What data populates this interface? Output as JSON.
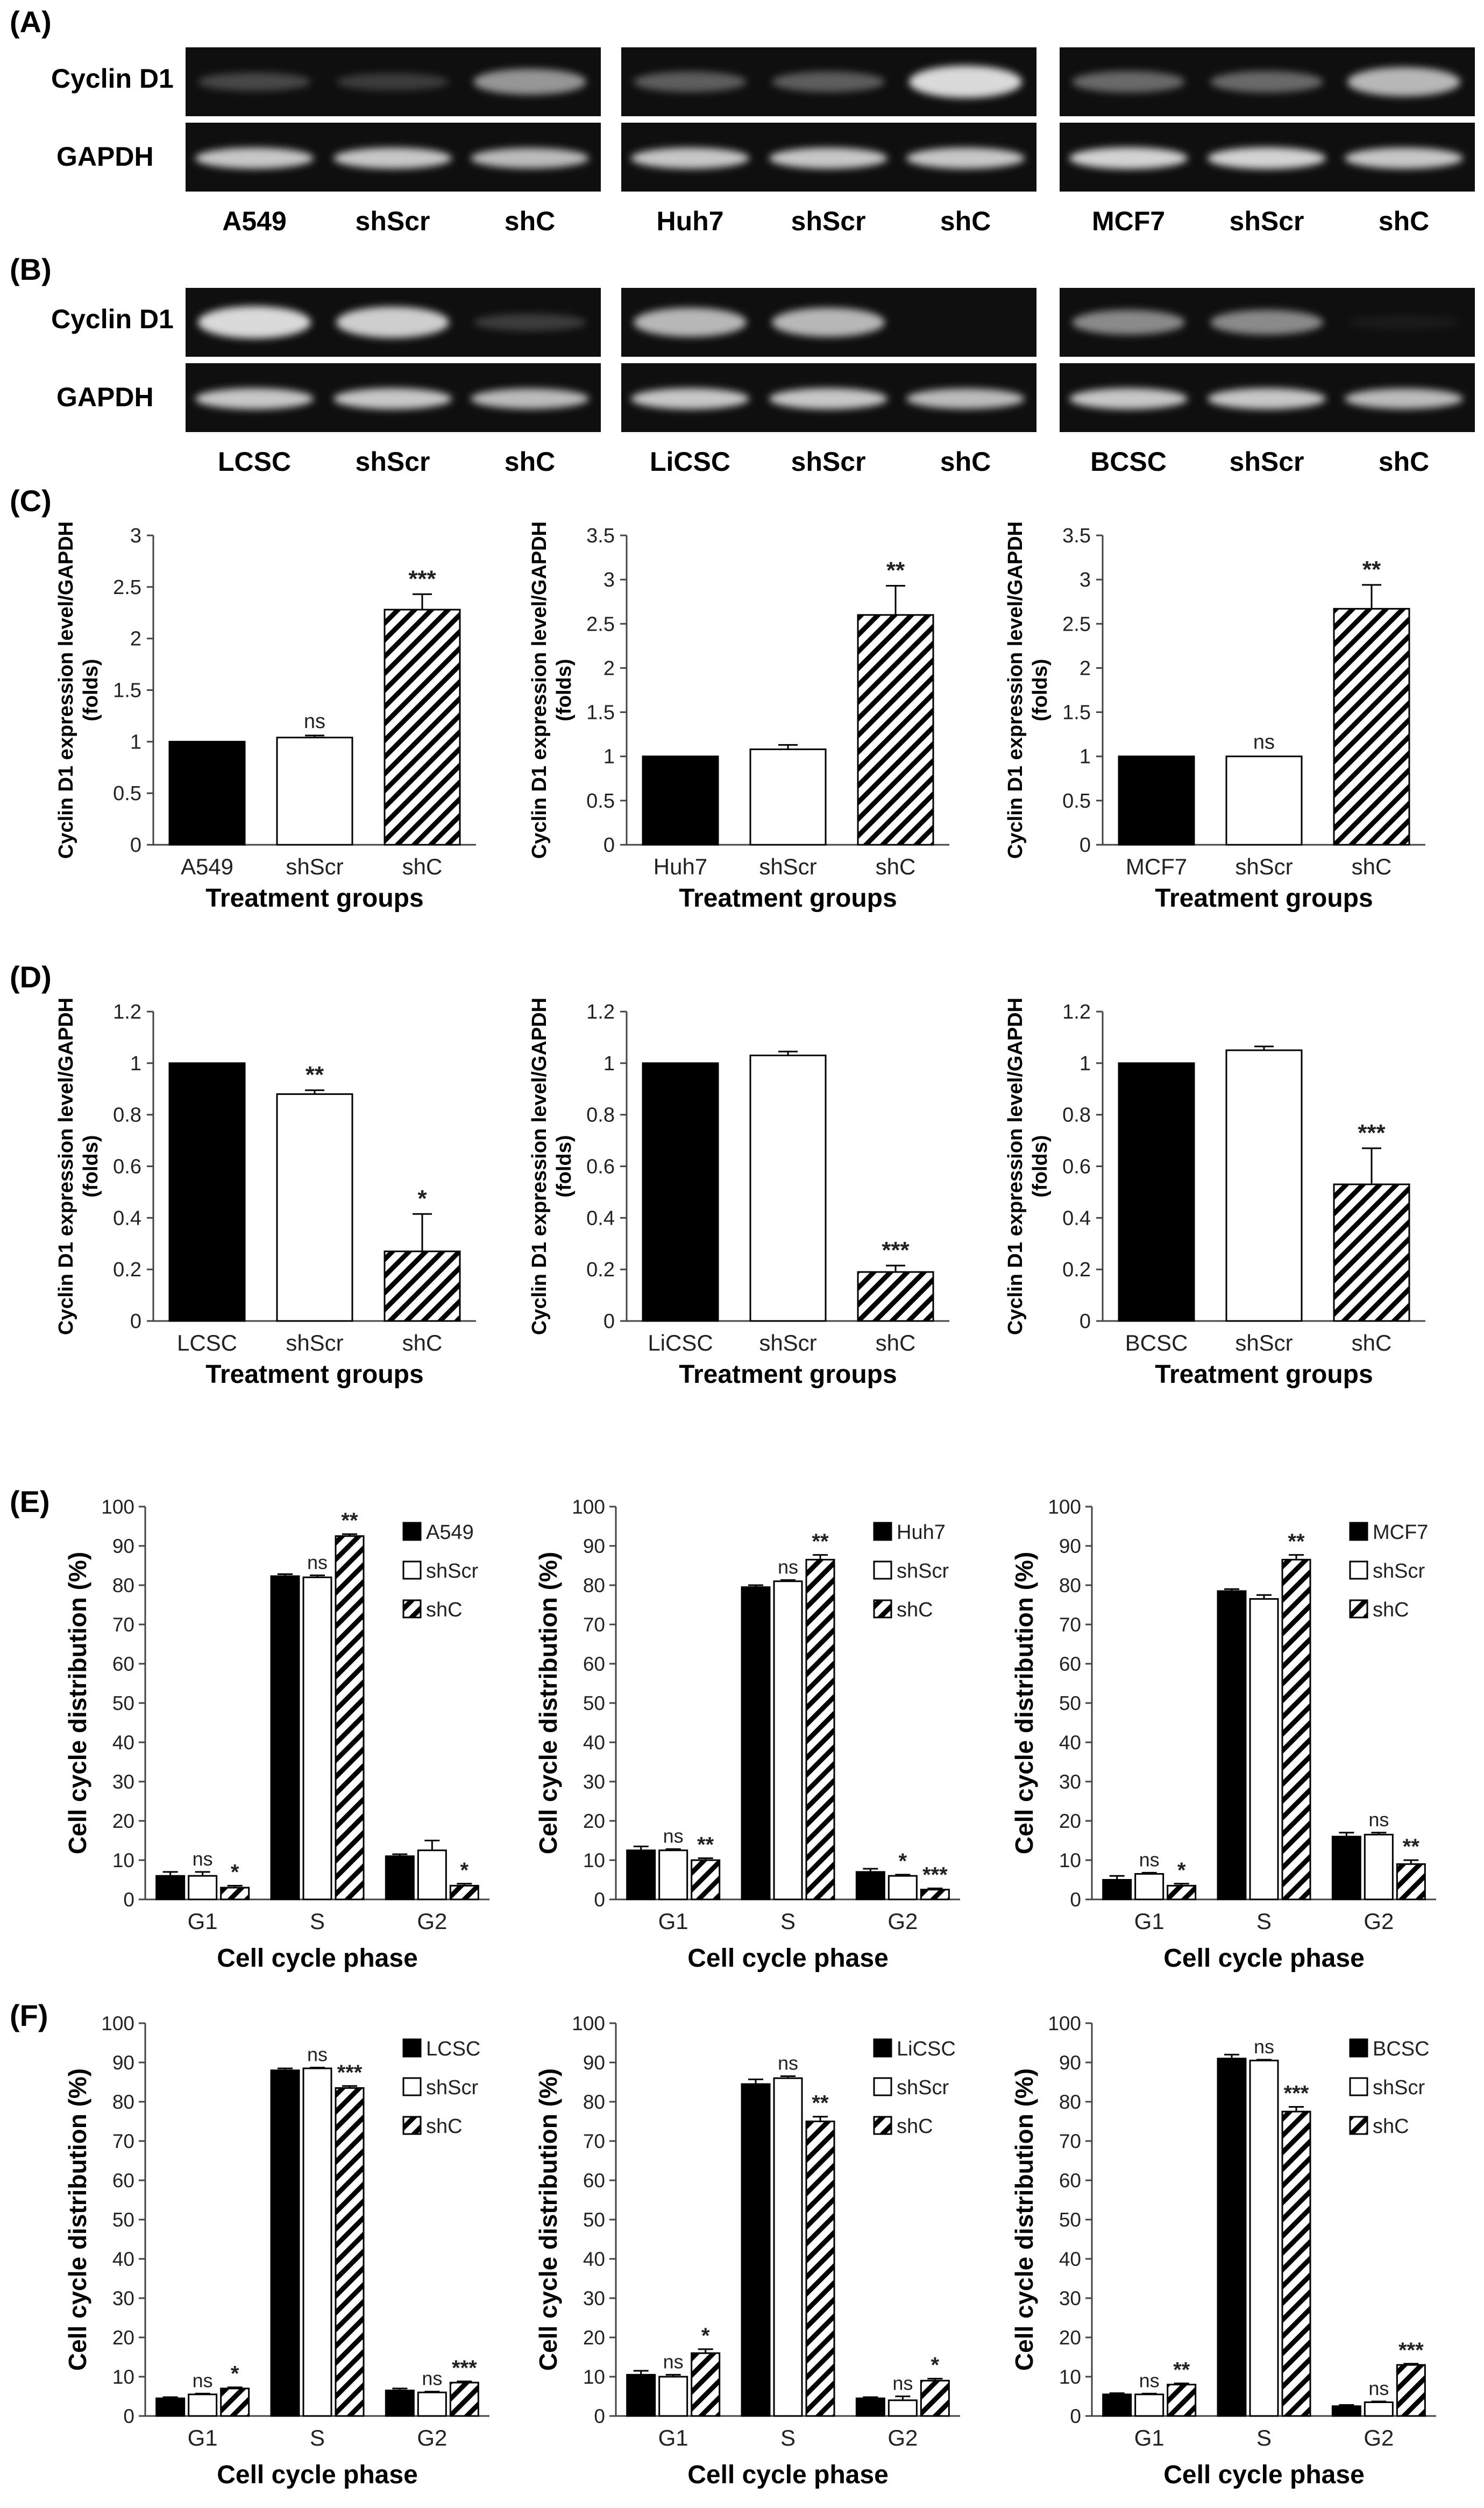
{
  "panel_labels": [
    "(A)",
    "(B)",
    "(C)",
    "(D)",
    "(E)",
    "(F)"
  ],
  "colors": {
    "control": "#000000",
    "shScr": "#ffffff",
    "shC": "hatch",
    "gel_bg": "#0d0d0d",
    "band": "#e8e8e8"
  },
  "blots": {
    "A": {
      "row_labels": [
        "Cyclin D1",
        "GAPDH"
      ],
      "groups": [
        {
          "lanes": [
            "A549",
            "shScr",
            "shC"
          ],
          "cyclin": [
            0.25,
            0.2,
            0.6
          ],
          "gapdh": [
            0.8,
            0.8,
            0.75
          ]
        },
        {
          "lanes": [
            "Huh7",
            "shScr",
            "shC"
          ],
          "cyclin": [
            0.35,
            0.35,
            0.9
          ],
          "gapdh": [
            0.8,
            0.8,
            0.8
          ]
        },
        {
          "lanes": [
            "MCF7",
            "shScr",
            "shC"
          ],
          "cyclin": [
            0.4,
            0.4,
            0.75
          ],
          "gapdh": [
            0.85,
            0.85,
            0.8
          ]
        }
      ]
    },
    "B": {
      "row_labels": [
        "Cyclin D1",
        "GAPDH"
      ],
      "groups": [
        {
          "lanes": [
            "LCSC",
            "shScr",
            "shC"
          ],
          "cyclin": [
            0.9,
            0.85,
            0.2
          ],
          "gapdh": [
            0.8,
            0.8,
            0.75
          ]
        },
        {
          "lanes": [
            "LiCSC",
            "shScr",
            "shC"
          ],
          "cyclin": [
            0.75,
            0.75,
            0.0
          ],
          "gapdh": [
            0.8,
            0.8,
            0.75
          ]
        },
        {
          "lanes": [
            "BCSC",
            "shScr",
            "shC"
          ],
          "cyclin": [
            0.55,
            0.55,
            0.05
          ],
          "gapdh": [
            0.8,
            0.8,
            0.75
          ]
        }
      ]
    }
  },
  "chart_data": [
    {
      "id": "C1",
      "panel": "C",
      "type": "bar",
      "categories": [
        "A549",
        "shScr",
        "shC"
      ],
      "values": [
        1.0,
        1.04,
        2.28
      ],
      "errors": [
        0,
        0.02,
        0.15
      ],
      "annotations": [
        "",
        "ns",
        "***"
      ],
      "ylim": [
        0,
        3
      ],
      "yticks": [
        "0",
        "0.5",
        "1",
        "1.5",
        "2",
        "2.5",
        "3"
      ],
      "ylabel_lines": [
        "Cyclin D1 expression level/GAPDH",
        "(folds)"
      ],
      "xlabel": "Treatment groups"
    },
    {
      "id": "C2",
      "panel": "C",
      "type": "bar",
      "categories": [
        "Huh7",
        "shScr",
        "shC"
      ],
      "values": [
        1.0,
        1.08,
        2.6
      ],
      "errors": [
        0,
        0.05,
        0.33
      ],
      "annotations": [
        "",
        "",
        "**"
      ],
      "ylim": [
        0,
        3.5
      ],
      "yticks": [
        "0",
        "0.5",
        "1",
        "1.5",
        "2",
        "2.5",
        "3",
        "3.5"
      ],
      "ylabel_lines": [
        "Cyclin D1 expression level/GAPDH",
        "(folds)"
      ],
      "xlabel": "Treatment groups"
    },
    {
      "id": "C3",
      "panel": "C",
      "type": "bar",
      "categories": [
        "MCF7",
        "shScr",
        "shC"
      ],
      "values": [
        1.0,
        1.0,
        2.67
      ],
      "errors": [
        0,
        0,
        0.27
      ],
      "annotations": [
        "",
        "ns",
        "**"
      ],
      "ylim": [
        0,
        3.5
      ],
      "yticks": [
        "0",
        "0.5",
        "1",
        "1.5",
        "2",
        "2.5",
        "3",
        "3.5"
      ],
      "ylabel_lines": [
        "Cyclin D1 expression level/GAPDH",
        "(folds)"
      ],
      "xlabel": "Treatment groups"
    },
    {
      "id": "D1",
      "panel": "D",
      "type": "bar",
      "categories": [
        "LCSC",
        "shScr",
        "shC"
      ],
      "values": [
        1.0,
        0.88,
        0.27
      ],
      "errors": [
        0,
        0.015,
        0.145
      ],
      "annotations": [
        "",
        "**",
        "*"
      ],
      "ylim": [
        0,
        1.2
      ],
      "yticks": [
        "0",
        "0.2",
        "0.4",
        "0.6",
        "0.8",
        "1",
        "1.2"
      ],
      "ylabel_lines": [
        "Cyclin D1 expression level/GAPDH",
        "(folds)"
      ],
      "xlabel": "Treatment groups"
    },
    {
      "id": "D2",
      "panel": "D",
      "type": "bar",
      "categories": [
        "LiCSC",
        "shScr",
        "shC"
      ],
      "values": [
        1.0,
        1.03,
        0.19
      ],
      "errors": [
        0,
        0.015,
        0.025
      ],
      "annotations": [
        "",
        "",
        "***"
      ],
      "ylim": [
        0,
        1.2
      ],
      "yticks": [
        "0",
        "0.2",
        "0.4",
        "0.6",
        "0.8",
        "1",
        "1.2"
      ],
      "ylabel_lines": [
        "Cyclin D1 expression level/GAPDH",
        "(folds)"
      ],
      "xlabel": "Treatment groups"
    },
    {
      "id": "D3",
      "panel": "D",
      "type": "bar",
      "categories": [
        "BCSC",
        "shScr",
        "shC"
      ],
      "values": [
        1.0,
        1.05,
        0.53
      ],
      "errors": [
        0,
        0.015,
        0.14
      ],
      "annotations": [
        "",
        "",
        "***"
      ],
      "ylim": [
        0,
        1.2
      ],
      "yticks": [
        "0",
        "0.2",
        "0.4",
        "0.6",
        "0.8",
        "1",
        "1.2"
      ],
      "ylabel_lines": [
        "Cyclin D1 expression level/GAPDH",
        "(folds)"
      ],
      "xlabel": "Treatment groups"
    },
    {
      "id": "E1",
      "panel": "E",
      "type": "grouped-bar",
      "categories": [
        "G1",
        "S",
        "G2"
      ],
      "ylim": [
        0,
        100
      ],
      "yticks": [
        "0",
        "10",
        "20",
        "30",
        "40",
        "50",
        "60",
        "70",
        "80",
        "90",
        "100"
      ],
      "ylabel": "Cell cycle distribution (%)",
      "xlabel": "Cell cycle phase",
      "legend_position": "top-right",
      "series": [
        {
          "name": "A549",
          "style": "solid",
          "values": [
            6.0,
            82.3,
            11.0
          ],
          "errors": [
            1.0,
            0.5,
            0.5
          ],
          "annotations": [
            "",
            "",
            ""
          ]
        },
        {
          "name": "shScr",
          "style": "open",
          "values": [
            6.0,
            82.0,
            12.5
          ],
          "errors": [
            1.0,
            0.5,
            2.5
          ],
          "annotations": [
            "ns",
            "ns",
            ""
          ]
        },
        {
          "name": "shC",
          "style": "hatch",
          "values": [
            3.0,
            92.5,
            3.5
          ],
          "errors": [
            0.5,
            0.5,
            0.5
          ],
          "annotations": [
            "*",
            "**",
            "*"
          ]
        }
      ]
    },
    {
      "id": "E2",
      "panel": "E",
      "type": "grouped-bar",
      "categories": [
        "G1",
        "S",
        "G2"
      ],
      "ylim": [
        0,
        100
      ],
      "yticks": [
        "0",
        "10",
        "20",
        "30",
        "40",
        "50",
        "60",
        "70",
        "80",
        "90",
        "100"
      ],
      "ylabel": "Cell cycle distribution (%)",
      "xlabel": "Cell cycle phase",
      "legend_position": "top-right",
      "series": [
        {
          "name": "Huh7",
          "style": "solid",
          "values": [
            12.5,
            79.5,
            7.0
          ],
          "errors": [
            1.0,
            0.5,
            0.8
          ],
          "annotations": [
            "",
            "",
            ""
          ]
        },
        {
          "name": "shScr",
          "style": "open",
          "values": [
            12.5,
            81.0,
            6.0
          ],
          "errors": [
            0.3,
            0.3,
            0.3
          ],
          "annotations": [
            "ns",
            "ns",
            "*"
          ]
        },
        {
          "name": "shC",
          "style": "hatch",
          "values": [
            10.0,
            86.5,
            2.5
          ],
          "errors": [
            0.5,
            1.2,
            0.3
          ],
          "annotations": [
            "**",
            "**",
            "***"
          ]
        }
      ]
    },
    {
      "id": "E3",
      "panel": "E",
      "type": "grouped-bar",
      "categories": [
        "G1",
        "S",
        "G2"
      ],
      "ylim": [
        0,
        100
      ],
      "yticks": [
        "0",
        "10",
        "20",
        "30",
        "40",
        "50",
        "60",
        "70",
        "80",
        "90",
        "100"
      ],
      "ylabel": "Cell cycle distribution (%)",
      "xlabel": "Cell cycle phase",
      "legend_position": "top-right",
      "series": [
        {
          "name": "MCF7",
          "style": "solid",
          "values": [
            5.0,
            78.5,
            16.0
          ],
          "errors": [
            1.0,
            0.5,
            1.0
          ],
          "annotations": [
            "",
            "",
            ""
          ]
        },
        {
          "name": "shScr",
          "style": "open",
          "values": [
            6.5,
            76.5,
            16.5
          ],
          "errors": [
            0.3,
            1.0,
            0.5
          ],
          "annotations": [
            "ns",
            "",
            "ns"
          ]
        },
        {
          "name": "shC",
          "style": "hatch",
          "values": [
            3.5,
            86.5,
            9.0
          ],
          "errors": [
            0.5,
            1.2,
            1.0
          ],
          "annotations": [
            "*",
            "**",
            "**"
          ]
        }
      ]
    },
    {
      "id": "F1",
      "panel": "F",
      "type": "grouped-bar",
      "categories": [
        "G1",
        "S",
        "G2"
      ],
      "ylim": [
        0,
        100
      ],
      "yticks": [
        "0",
        "10",
        "20",
        "30",
        "40",
        "50",
        "60",
        "70",
        "80",
        "90",
        "100"
      ],
      "ylabel": "Cell cycle distribution (%)",
      "xlabel": "Cell cycle phase",
      "legend_position": "top-right",
      "series": [
        {
          "name": "LCSC",
          "style": "solid",
          "values": [
            4.5,
            88.0,
            6.5
          ],
          "errors": [
            0.3,
            0.5,
            0.5
          ],
          "annotations": [
            "",
            "",
            ""
          ]
        },
        {
          "name": "shScr",
          "style": "open",
          "values": [
            5.5,
            88.5,
            6.0
          ],
          "errors": [
            0.2,
            0.2,
            0.2
          ],
          "annotations": [
            "ns",
            "ns",
            "ns"
          ]
        },
        {
          "name": "shC",
          "style": "hatch",
          "values": [
            7.0,
            83.5,
            8.5
          ],
          "errors": [
            0.3,
            0.5,
            0.3
          ],
          "annotations": [
            "*",
            "***",
            "***"
          ]
        }
      ]
    },
    {
      "id": "F2",
      "panel": "F",
      "type": "grouped-bar",
      "categories": [
        "G1",
        "S",
        "G2"
      ],
      "ylim": [
        0,
        100
      ],
      "yticks": [
        "0",
        "10",
        "20",
        "30",
        "40",
        "50",
        "60",
        "70",
        "80",
        "90",
        "100"
      ],
      "ylabel": "Cell cycle distribution (%)",
      "xlabel": "Cell cycle phase",
      "legend_position": "top-right",
      "series": [
        {
          "name": "LiCSC",
          "style": "solid",
          "values": [
            10.5,
            84.5,
            4.5
          ],
          "errors": [
            1.0,
            1.2,
            0.3
          ],
          "annotations": [
            "",
            "",
            ""
          ]
        },
        {
          "name": "shScr",
          "style": "open",
          "values": [
            10.0,
            86.0,
            4.0
          ],
          "errors": [
            0.5,
            0.5,
            1.0
          ],
          "annotations": [
            "ns",
            "ns",
            "ns"
          ]
        },
        {
          "name": "shC",
          "style": "hatch",
          "values": [
            16.0,
            75.0,
            9.0
          ],
          "errors": [
            1.0,
            1.2,
            0.5
          ],
          "annotations": [
            "*",
            "**",
            "*"
          ]
        }
      ]
    },
    {
      "id": "F3",
      "panel": "F",
      "type": "grouped-bar",
      "categories": [
        "G1",
        "S",
        "G2"
      ],
      "ylim": [
        0,
        100
      ],
      "yticks": [
        "0",
        "10",
        "20",
        "30",
        "40",
        "50",
        "60",
        "70",
        "80",
        "90",
        "100"
      ],
      "ylabel": "Cell cycle distribution (%)",
      "xlabel": "Cell cycle phase",
      "legend_position": "top-right",
      "series": [
        {
          "name": "BCSC",
          "style": "solid",
          "values": [
            5.5,
            91.0,
            2.5
          ],
          "errors": [
            0.3,
            1.0,
            0.3
          ],
          "annotations": [
            "",
            "",
            ""
          ]
        },
        {
          "name": "shScr",
          "style": "open",
          "values": [
            5.5,
            90.5,
            3.5
          ],
          "errors": [
            0.2,
            0.2,
            0.2
          ],
          "annotations": [
            "ns",
            "ns",
            "ns"
          ]
        },
        {
          "name": "shC",
          "style": "hatch",
          "values": [
            8.0,
            77.5,
            13.0
          ],
          "errors": [
            0.3,
            1.2,
            0.3
          ],
          "annotations": [
            "**",
            "***",
            "***"
          ]
        }
      ]
    }
  ]
}
